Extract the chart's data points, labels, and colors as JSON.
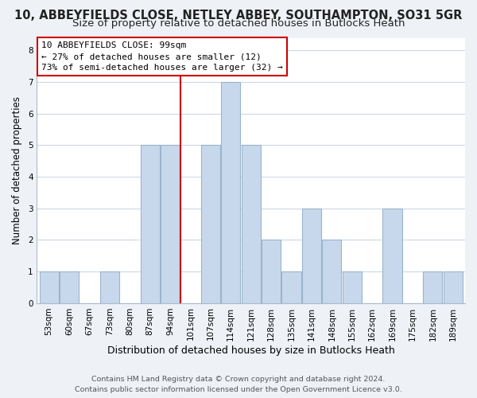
{
  "title": "10, ABBEYFIELDS CLOSE, NETLEY ABBEY, SOUTHAMPTON, SO31 5GR",
  "subtitle": "Size of property relative to detached houses in Butlocks Heath",
  "xlabel": "Distribution of detached houses by size in Butlocks Heath",
  "ylabel": "Number of detached properties",
  "bin_labels": [
    "53sqm",
    "60sqm",
    "67sqm",
    "73sqm",
    "80sqm",
    "87sqm",
    "94sqm",
    "101sqm",
    "107sqm",
    "114sqm",
    "121sqm",
    "128sqm",
    "135sqm",
    "141sqm",
    "148sqm",
    "155sqm",
    "162sqm",
    "169sqm",
    "175sqm",
    "182sqm",
    "189sqm"
  ],
  "bar_heights": [
    1,
    1,
    0,
    1,
    0,
    5,
    5,
    0,
    5,
    7,
    5,
    2,
    1,
    3,
    2,
    1,
    0,
    3,
    0,
    1,
    1
  ],
  "bar_color": "#c8d8ec",
  "bar_edge_color": "#9ab4cc",
  "vline_x_index": 7,
  "vline_color": "#cc0000",
  "annotation_title": "10 ABBEYFIELDS CLOSE: 99sqm",
  "annotation_line1": "← 27% of detached houses are smaller (12)",
  "annotation_line2": "73% of semi-detached houses are larger (32) →",
  "annotation_box_color": "#ffffff",
  "annotation_box_edge": "#cc0000",
  "ylim": [
    0,
    8.4
  ],
  "yticks": [
    0,
    1,
    2,
    3,
    4,
    5,
    6,
    7,
    8
  ],
  "footnote1": "Contains HM Land Registry data © Crown copyright and database right 2024.",
  "footnote2": "Contains public sector information licensed under the Open Government Licence v3.0.",
  "bg_color": "#eef2f7",
  "plot_bg_color": "#ffffff",
  "grid_color": "#cdd8e4",
  "title_fontsize": 10.5,
  "subtitle_fontsize": 9.5,
  "xlabel_fontsize": 9,
  "ylabel_fontsize": 8.5,
  "tick_fontsize": 7.5,
  "footnote_fontsize": 6.8
}
